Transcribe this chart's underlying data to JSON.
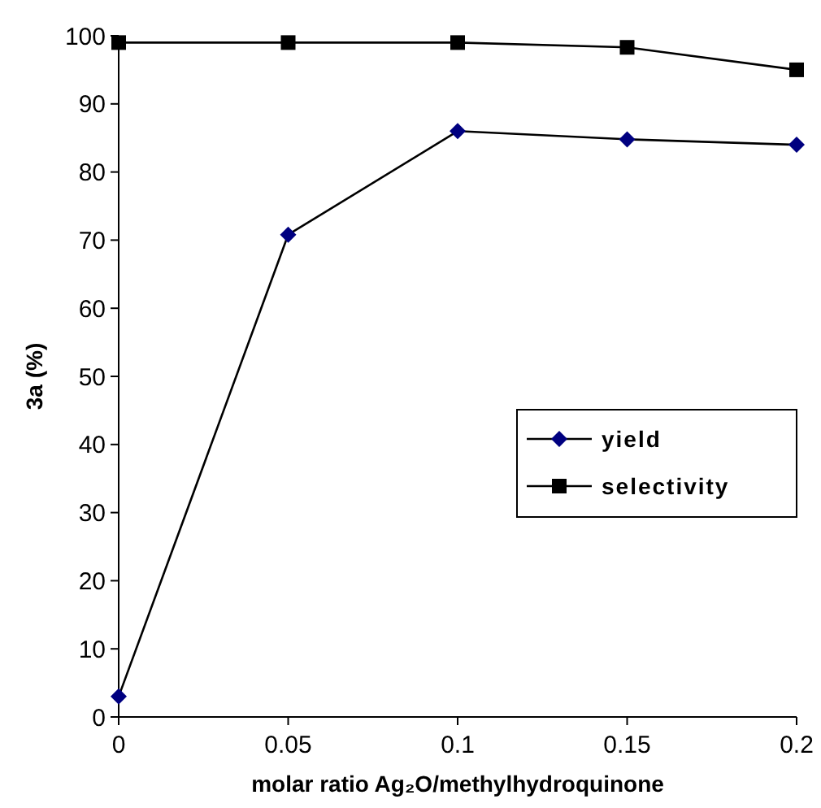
{
  "chart_data": {
    "type": "line",
    "xlabel": "molar ratio Ag₂O/methylhydroquinone",
    "ylabel": "3a (%)",
    "x": [
      0,
      0.05,
      0.1,
      0.15,
      0.2
    ],
    "series": [
      {
        "name": "yield",
        "color": "#000080",
        "values": [
          3,
          70.8,
          86,
          84.8,
          84
        ],
        "marker": "diamond"
      },
      {
        "name": "selectivity",
        "color": "#000000",
        "values": [
          99,
          99,
          99,
          98.3,
          95
        ],
        "marker": "square"
      }
    ],
    "xlim": [
      0,
      0.2
    ],
    "xticks": [
      0,
      0.05,
      0.1,
      0.15,
      0.2
    ],
    "ylim": [
      0,
      100
    ],
    "yticks": [
      0,
      10,
      20,
      30,
      40,
      50,
      60,
      70,
      80,
      90,
      100
    ],
    "grid": false,
    "legend": "right",
    "line_style": "solid"
  }
}
